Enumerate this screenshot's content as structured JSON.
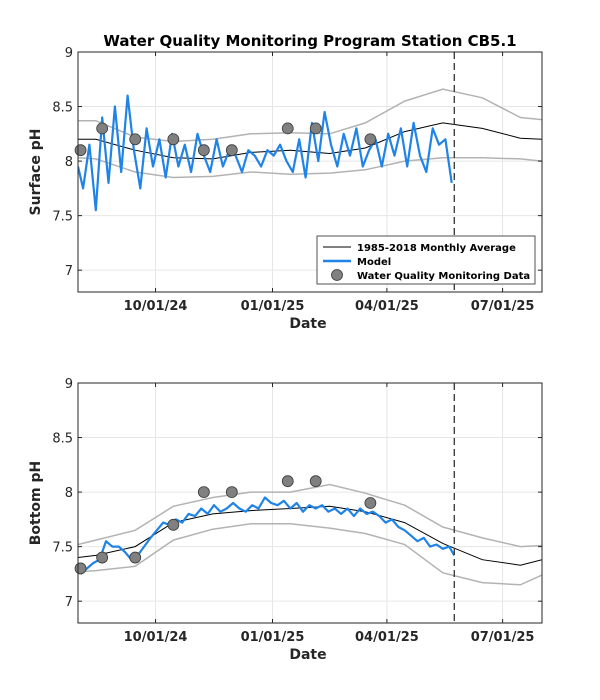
{
  "colors": {
    "average": "#000000",
    "band": "#b3b3b3",
    "model": "#1f83e8",
    "obs": "#808080",
    "obs_edge": "#3a3a3a",
    "grid": "#e6e6e6",
    "forecast_line": "#333333"
  },
  "chart_data": [
    {
      "type": "line",
      "title": "Water Quality Monitoring Program Station CB5.1",
      "xlabel": "Date",
      "ylabel": "Surface pH",
      "xlim": [
        "2024-08-01",
        "2025-08-01"
      ],
      "ylim": [
        6.8,
        9
      ],
      "yticks": [
        7,
        7.5,
        8,
        8.5,
        9
      ],
      "ytick_labels": [
        "7",
        "7.5",
        "8",
        "8.5",
        "9"
      ],
      "xticks": [
        "2024-10-01",
        "2025-01-01",
        "2025-04-01",
        "2025-07-01"
      ],
      "xtick_labels": [
        "10/01/24",
        "01/01/25",
        "04/01/25",
        "07/01/25"
      ],
      "forecast_date": "2025-05-24",
      "grid": true,
      "legend": {
        "position": "lower-right",
        "entries": [
          "1985-2018 Monthly Average",
          "Model",
          "Water Quality Monitoring Data"
        ]
      },
      "series": [
        {
          "name": "1985-2018 Monthly Average",
          "x": [
            "2024-08-01",
            "2024-08-15",
            "2024-09-15",
            "2024-10-15",
            "2024-11-15",
            "2024-12-15",
            "2025-01-15",
            "2025-02-15",
            "2025-03-15",
            "2025-04-15",
            "2025-05-15",
            "2025-06-15",
            "2025-07-15",
            "2025-08-01"
          ],
          "y": [
            8.2,
            8.2,
            8.1,
            8.03,
            8.02,
            8.08,
            8.1,
            8.07,
            8.12,
            8.27,
            8.35,
            8.3,
            8.21,
            8.2
          ]
        },
        {
          "name": "Upper band",
          "x": [
            "2024-08-01",
            "2024-08-15",
            "2024-09-15",
            "2024-10-15",
            "2024-11-15",
            "2024-12-15",
            "2025-01-15",
            "2025-02-15",
            "2025-03-15",
            "2025-04-15",
            "2025-05-15",
            "2025-06-15",
            "2025-07-15",
            "2025-08-01"
          ],
          "y": [
            8.37,
            8.37,
            8.22,
            8.18,
            8.2,
            8.25,
            8.26,
            8.25,
            8.35,
            8.55,
            8.66,
            8.58,
            8.4,
            8.38
          ]
        },
        {
          "name": "Lower band",
          "x": [
            "2024-08-01",
            "2024-08-15",
            "2024-09-15",
            "2024-10-15",
            "2024-11-15",
            "2024-12-15",
            "2025-01-15",
            "2025-02-15",
            "2025-03-15",
            "2025-04-15",
            "2025-05-15",
            "2025-06-15",
            "2025-07-15",
            "2025-08-01"
          ],
          "y": [
            8.03,
            8.02,
            7.9,
            7.85,
            7.86,
            7.9,
            7.88,
            7.89,
            7.92,
            8.0,
            8.03,
            8.03,
            8.02,
            8.0
          ]
        },
        {
          "name": "Model",
          "x": [
            "2024-08-01",
            "2024-08-05",
            "2024-08-10",
            "2024-08-15",
            "2024-08-20",
            "2024-08-25",
            "2024-08-30",
            "2024-09-04",
            "2024-09-09",
            "2024-09-14",
            "2024-09-19",
            "2024-09-24",
            "2024-09-29",
            "2024-10-04",
            "2024-10-09",
            "2024-10-14",
            "2024-10-19",
            "2024-10-24",
            "2024-10-29",
            "2024-11-03",
            "2024-11-08",
            "2024-11-13",
            "2024-11-18",
            "2024-11-23",
            "2024-11-28",
            "2024-12-03",
            "2024-12-08",
            "2024-12-13",
            "2024-12-18",
            "2024-12-23",
            "2024-12-28",
            "2025-01-02",
            "2025-01-07",
            "2025-01-12",
            "2025-01-17",
            "2025-01-22",
            "2025-01-27",
            "2025-02-01",
            "2025-02-06",
            "2025-02-11",
            "2025-02-16",
            "2025-02-21",
            "2025-02-26",
            "2025-03-03",
            "2025-03-08",
            "2025-03-13",
            "2025-03-18",
            "2025-03-23",
            "2025-03-28",
            "2025-04-02",
            "2025-04-07",
            "2025-04-12",
            "2025-04-17",
            "2025-04-22",
            "2025-04-27",
            "2025-05-02",
            "2025-05-07",
            "2025-05-12",
            "2025-05-17",
            "2025-05-22"
          ],
          "y": [
            7.95,
            7.75,
            8.15,
            7.55,
            8.4,
            7.8,
            8.5,
            7.9,
            8.6,
            8.1,
            7.75,
            8.3,
            7.95,
            8.2,
            7.85,
            8.25,
            7.95,
            8.15,
            7.9,
            8.25,
            8.05,
            7.9,
            8.2,
            7.95,
            8.1,
            8.05,
            7.9,
            8.1,
            8.05,
            7.95,
            8.1,
            8.05,
            8.15,
            8.0,
            7.9,
            8.2,
            7.85,
            8.35,
            8.0,
            8.45,
            8.15,
            7.95,
            8.25,
            8.05,
            8.3,
            7.95,
            8.1,
            8.2,
            7.95,
            8.25,
            8.05,
            8.3,
            7.95,
            8.35,
            8.05,
            7.9,
            8.3,
            8.15,
            8.2,
            7.8
          ]
        },
        {
          "name": "Water Quality Monitoring Data",
          "x": [
            "2024-08-03",
            "2024-08-20",
            "2024-09-15",
            "2024-10-15",
            "2024-11-08",
            "2024-11-30",
            "2025-01-13",
            "2025-02-04",
            "2025-03-19"
          ],
          "y": [
            8.1,
            8.3,
            8.2,
            8.2,
            8.1,
            8.1,
            8.3,
            8.3,
            8.2
          ]
        }
      ]
    },
    {
      "type": "line",
      "title": "",
      "xlabel": "Date",
      "ylabel": "Bottom pH",
      "xlim": [
        "2024-08-01",
        "2025-08-01"
      ],
      "ylim": [
        6.8,
        9
      ],
      "yticks": [
        7,
        7.5,
        8,
        8.5,
        9
      ],
      "ytick_labels": [
        "7",
        "7.5",
        "8",
        "8.5",
        "9"
      ],
      "xticks": [
        "2024-10-01",
        "2025-01-01",
        "2025-04-01",
        "2025-07-01"
      ],
      "xtick_labels": [
        "10/01/24",
        "01/01/25",
        "04/01/25",
        "07/01/25"
      ],
      "forecast_date": "2025-05-24",
      "grid": true,
      "series": [
        {
          "name": "1985-2018 Monthly Average",
          "x": [
            "2024-08-01",
            "2024-08-15",
            "2024-09-15",
            "2024-10-15",
            "2024-11-15",
            "2024-12-15",
            "2025-01-15",
            "2025-02-15",
            "2025-03-15",
            "2025-04-15",
            "2025-05-15",
            "2025-06-15",
            "2025-07-15",
            "2025-08-01"
          ],
          "y": [
            7.4,
            7.42,
            7.5,
            7.72,
            7.8,
            7.83,
            7.85,
            7.87,
            7.82,
            7.72,
            7.53,
            7.38,
            7.33,
            7.38
          ]
        },
        {
          "name": "Upper band",
          "x": [
            "2024-08-01",
            "2024-08-15",
            "2024-09-15",
            "2024-10-15",
            "2024-11-15",
            "2024-12-15",
            "2025-01-15",
            "2025-02-15",
            "2025-03-15",
            "2025-04-15",
            "2025-05-15",
            "2025-06-15",
            "2025-07-15",
            "2025-08-01"
          ],
          "y": [
            7.52,
            7.56,
            7.65,
            7.87,
            7.95,
            8.0,
            8.0,
            8.07,
            7.99,
            7.88,
            7.68,
            7.58,
            7.5,
            7.51
          ]
        },
        {
          "name": "Lower band",
          "x": [
            "2024-08-01",
            "2024-08-15",
            "2024-09-15",
            "2024-10-15",
            "2024-11-15",
            "2024-12-15",
            "2025-01-15",
            "2025-02-15",
            "2025-03-15",
            "2025-04-15",
            "2025-05-15",
            "2025-06-15",
            "2025-07-15",
            "2025-08-01"
          ],
          "y": [
            7.27,
            7.28,
            7.32,
            7.56,
            7.66,
            7.71,
            7.71,
            7.67,
            7.62,
            7.52,
            7.26,
            7.17,
            7.15,
            7.24
          ]
        },
        {
          "name": "Model",
          "x": [
            "2024-08-03",
            "2024-08-08",
            "2024-08-13",
            "2024-08-18",
            "2024-08-23",
            "2024-08-28",
            "2024-09-02",
            "2024-09-07",
            "2024-09-12",
            "2024-09-17",
            "2024-09-22",
            "2024-09-27",
            "2024-10-02",
            "2024-10-07",
            "2024-10-12",
            "2024-10-17",
            "2024-10-22",
            "2024-10-27",
            "2024-11-01",
            "2024-11-06",
            "2024-11-11",
            "2024-11-16",
            "2024-11-21",
            "2024-11-26",
            "2024-12-01",
            "2024-12-06",
            "2024-12-11",
            "2024-12-16",
            "2024-12-21",
            "2024-12-26",
            "2024-12-31",
            "2025-01-05",
            "2025-01-10",
            "2025-01-15",
            "2025-01-20",
            "2025-01-25",
            "2025-01-30",
            "2025-02-04",
            "2025-02-09",
            "2025-02-14",
            "2025-02-19",
            "2025-02-24",
            "2025-03-01",
            "2025-03-06",
            "2025-03-11",
            "2025-03-16",
            "2025-03-21",
            "2025-03-26",
            "2025-03-31",
            "2025-04-05",
            "2025-04-10",
            "2025-04-15",
            "2025-04-20",
            "2025-04-25",
            "2025-04-30",
            "2025-05-05",
            "2025-05-10",
            "2025-05-15",
            "2025-05-20",
            "2025-05-24"
          ],
          "y": [
            7.25,
            7.3,
            7.35,
            7.38,
            7.55,
            7.5,
            7.5,
            7.45,
            7.38,
            7.42,
            7.5,
            7.58,
            7.65,
            7.72,
            7.7,
            7.75,
            7.72,
            7.8,
            7.78,
            7.85,
            7.8,
            7.88,
            7.82,
            7.85,
            7.9,
            7.85,
            7.82,
            7.88,
            7.85,
            7.95,
            7.9,
            7.88,
            7.92,
            7.85,
            7.9,
            7.82,
            7.88,
            7.85,
            7.88,
            7.82,
            7.85,
            7.8,
            7.85,
            7.78,
            7.85,
            7.8,
            7.82,
            7.78,
            7.72,
            7.75,
            7.68,
            7.65,
            7.6,
            7.55,
            7.58,
            7.5,
            7.52,
            7.48,
            7.5,
            7.42
          ]
        },
        {
          "name": "Water Quality Monitoring Data",
          "x": [
            "2024-08-03",
            "2024-08-20",
            "2024-09-15",
            "2024-10-15",
            "2024-11-08",
            "2024-11-30",
            "2025-01-13",
            "2025-02-04",
            "2025-03-19"
          ],
          "y": [
            7.3,
            7.4,
            7.4,
            7.7,
            8.0,
            8.0,
            8.1,
            8.1,
            7.9
          ]
        }
      ]
    }
  ]
}
